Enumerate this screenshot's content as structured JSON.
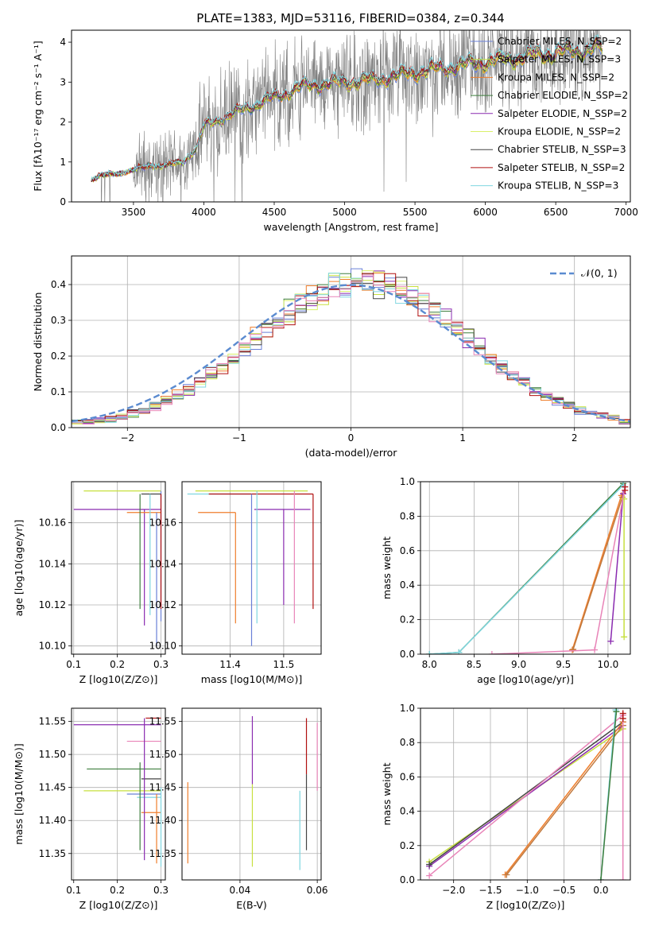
{
  "chart_data": [
    {
      "id": "spectrum",
      "type": "line",
      "title": "PLATE=1383, MJD=53116, FIBERID=0384, z=0.344",
      "xlabel": "wavelength [Angstrom, rest frame]",
      "ylabel": "Flux [fλ10⁻¹⁷ erg cm⁻² s⁻¹ A⁻¹]",
      "xlim": [
        3060,
        7030
      ],
      "ylim": [
        0,
        4.3
      ],
      "xticks": [
        3500,
        4000,
        4500,
        5000,
        5500,
        6000,
        6500,
        7000
      ],
      "yticks": [
        0,
        1,
        2,
        3,
        4
      ],
      "grid": false,
      "legend": "top-right",
      "data_range": [
        3200,
        6830
      ],
      "continuum": {
        "x": [
          3200,
          3250,
          3400,
          3500,
          3550,
          3650,
          3700,
          3850,
          3950,
          4000,
          4300,
          4600,
          4700,
          5000,
          5200,
          5600,
          6000,
          6400,
          6830
        ],
        "y": [
          0.55,
          0.65,
          0.72,
          0.8,
          0.85,
          0.92,
          0.9,
          1.0,
          1.35,
          1.9,
          2.35,
          2.75,
          2.9,
          3.0,
          3.05,
          3.3,
          3.5,
          3.7,
          3.85
        ]
      },
      "series": [
        {
          "name": "Chabrier MILES, N_SSP=2",
          "color": "#6a80d8"
        },
        {
          "name": "Salpeter MILES, N_SSP=3",
          "color": "#c7e03f"
        },
        {
          "name": "Kroupa MILES, N_SSP=2",
          "color": "#ef7e2c"
        },
        {
          "name": "Chabrier ELODIE, N_SSP=2",
          "color": "#3f7f3f"
        },
        {
          "name": "Salpeter ELODIE, N_SSP=2",
          "color": "#8a2bb0"
        },
        {
          "name": "Kroupa ELODIE, N_SSP=2",
          "color": "#d9f06a"
        },
        {
          "name": "Chabrier STELIB, N_SSP=3",
          "color": "#444444"
        },
        {
          "name": "Salpeter STELIB, N_SSP=2",
          "color": "#b01010"
        },
        {
          "name": "Kroupa STELIB, N_SSP=3",
          "color": "#7fd6e0"
        }
      ],
      "data_color": "#808080"
    },
    {
      "id": "residuals",
      "type": "bar",
      "xlabel": "(data-model)/error",
      "ylabel": "Normed distribution",
      "xlim": [
        -2.5,
        2.5
      ],
      "ylim": [
        0,
        0.48
      ],
      "xticks": [
        -2,
        -1,
        0,
        1,
        2
      ],
      "yticks": [
        0.0,
        0.1,
        0.2,
        0.3,
        0.4
      ],
      "grid": true,
      "legend": "top-right",
      "reference": {
        "name": "𝒩(0, 1)",
        "color": "#5b8bd0"
      },
      "bin_width": 0.1,
      "histogram_colors": [
        "#6a80d8",
        "#c7e03f",
        "#ef7e2c",
        "#3f7f3f",
        "#8a2bb0",
        "#d9f06a",
        "#444444",
        "#b01010",
        "#7fd6e0",
        "#e884b8"
      ]
    },
    {
      "id": "age-vs-Z",
      "type": "scatter",
      "xlabel": "Z [log10(Z/Z⊙)]",
      "ylabel": "age  [log10(age/yr)]",
      "xlim": [
        0.095,
        0.31
      ],
      "ylim": [
        10.096,
        10.18
      ],
      "xticks": [
        0.1,
        0.2,
        0.3
      ],
      "yticks": [
        10.1,
        10.12,
        10.14,
        10.16
      ],
      "grid": true,
      "points": [
        {
          "x": 0.123,
          "x2": 0.3,
          "y": 10.1755,
          "y2": 10.1755,
          "color": "#c7e03f"
        },
        {
          "x": 0.3,
          "x2": 0.3,
          "y": 10.1755,
          "y2": 10.112,
          "color": "#6a80d8"
        },
        {
          "x": 0.1,
          "x2": 0.3,
          "y": 10.1665,
          "y2": 10.1665,
          "color": "#8a2bb0"
        },
        {
          "x": 0.262,
          "x2": 0.262,
          "y": 10.1665,
          "y2": 10.11,
          "color": "#8a2bb0"
        },
        {
          "x": 0.222,
          "x2": 0.3,
          "y": 10.165,
          "y2": 10.165,
          "color": "#ef7e2c"
        },
        {
          "x": 0.29,
          "x2": 0.29,
          "y": 10.165,
          "y2": 10.1,
          "color": "#6a80d8"
        },
        {
          "x": 0.255,
          "x2": 0.3,
          "y": 10.174,
          "y2": 10.174,
          "color": "#444444"
        },
        {
          "x": 0.252,
          "x2": 0.252,
          "y": 10.174,
          "y2": 10.118,
          "color": "#3f7f3f"
        },
        {
          "x": 0.275,
          "x2": 0.275,
          "y": 10.174,
          "y2": 10.115,
          "color": "#7fd6e0"
        },
        {
          "x": 0.3,
          "x2": 0.3,
          "y": 10.174,
          "y2": 10.118,
          "color": "#b01010"
        }
      ]
    },
    {
      "id": "age-vs-mass",
      "type": "scatter",
      "xlabel": "mass [log10(M/M⊙)]",
      "ylabel": "",
      "xlim": [
        11.31,
        11.57
      ],
      "ylim": [
        10.096,
        10.18
      ],
      "xticks": [
        11.4,
        11.5
      ],
      "yticks": [
        10.1,
        10.12,
        10.14,
        10.16
      ],
      "grid": true,
      "points": [
        {
          "x": 11.335,
          "x2": 11.545,
          "y": 10.1755,
          "y2": 10.1755,
          "color": "#c7e03f"
        },
        {
          "x": 11.32,
          "x2": 11.44,
          "y": 10.174,
          "y2": 10.174,
          "color": "#7fd6e0"
        },
        {
          "x": 11.36,
          "x2": 11.555,
          "y": 10.174,
          "y2": 10.174,
          "color": "#b01010"
        },
        {
          "x": 11.445,
          "x2": 11.55,
          "y": 10.1665,
          "y2": 10.1665,
          "color": "#8a2bb0"
        },
        {
          "x": 11.34,
          "x2": 11.41,
          "y": 10.165,
          "y2": 10.165,
          "color": "#ef7e2c"
        },
        {
          "x": 11.41,
          "x2": 11.41,
          "y": 10.165,
          "y2": 10.111,
          "color": "#ef7e2c"
        },
        {
          "x": 11.44,
          "x2": 11.44,
          "y": 10.174,
          "y2": 10.1,
          "color": "#6a80d8"
        },
        {
          "x": 11.45,
          "x2": 11.45,
          "y": 10.1755,
          "y2": 10.111,
          "color": "#7fd6e0"
        },
        {
          "x": 11.5,
          "x2": 11.5,
          "y": 10.1665,
          "y2": 10.12,
          "color": "#8a2bb0"
        },
        {
          "x": 11.52,
          "x2": 11.52,
          "y": 10.1755,
          "y2": 10.111,
          "color": "#e884b8"
        },
        {
          "x": 11.555,
          "x2": 11.555,
          "y": 10.174,
          "y2": 10.118,
          "color": "#b01010"
        }
      ]
    },
    {
      "id": "weight-vs-age",
      "type": "line",
      "xlabel": "age  [log10(age/yr)]",
      "ylabel": "mass weight",
      "xlim": [
        7.9,
        10.25
      ],
      "ylim": [
        0,
        1.0
      ],
      "xticks": [
        8.0,
        8.5,
        9.0,
        9.5,
        10.0
      ],
      "yticks": [
        0.0,
        0.2,
        0.4,
        0.6,
        0.8,
        1.0
      ],
      "grid": true,
      "series": [
        {
          "color": "#3f7f3f",
          "x": [
            8.0,
            8.33,
            10.17
          ],
          "y": [
            0.0,
            0.01,
            0.99
          ]
        },
        {
          "color": "#7fd6e0",
          "x": [
            8.0,
            8.33,
            10.17
          ],
          "y": [
            0.0,
            0.01,
            0.98
          ]
        },
        {
          "color": "#ef7e2c",
          "x": [
            9.6,
            10.15
          ],
          "y": [
            0.025,
            0.92
          ]
        },
        {
          "color": "#c07a40",
          "x": [
            9.61,
            10.16
          ],
          "y": [
            0.028,
            0.91
          ]
        },
        {
          "color": "#8a2bb0",
          "x": [
            10.03,
            10.17
          ],
          "y": [
            0.075,
            0.93
          ]
        },
        {
          "color": "#c7e03f",
          "x": [
            10.18,
            10.18
          ],
          "y": [
            0.1,
            0.9
          ]
        },
        {
          "color": "#e884b8",
          "x": [
            8.7,
            9.85,
            10.19
          ],
          "y": [
            0.0,
            0.025,
            0.97
          ]
        },
        {
          "color": "#b01010",
          "x": [
            10.19,
            10.19
          ],
          "y": [
            0.95,
            0.97
          ]
        }
      ]
    },
    {
      "id": "mass-vs-Z",
      "type": "scatter",
      "xlabel": "Z [log10(Z/Z⊙)]",
      "ylabel": "mass [log10(M/M⊙)]",
      "xlim": [
        0.095,
        0.31
      ],
      "ylim": [
        11.31,
        11.57
      ],
      "xticks": [
        0.1,
        0.2,
        0.3
      ],
      "yticks": [
        11.35,
        11.4,
        11.45,
        11.5,
        11.55
      ],
      "grid": true,
      "points": [
        {
          "x": 0.1,
          "x2": 0.3,
          "y": 11.545,
          "y2": 11.545,
          "color": "#8a2bb0"
        },
        {
          "x": 0.222,
          "x2": 0.3,
          "y": 11.52,
          "y2": 11.52,
          "color": "#e884b8"
        },
        {
          "x": 0.13,
          "x2": 0.3,
          "y": 11.478,
          "y2": 11.478,
          "color": "#3f7f3f"
        },
        {
          "x": 0.123,
          "x2": 0.3,
          "y": 11.445,
          "y2": 11.445,
          "color": "#c7e03f"
        },
        {
          "x": 0.222,
          "x2": 0.3,
          "y": 11.44,
          "y2": 11.44,
          "color": "#6a80d8"
        },
        {
          "x": 0.255,
          "x2": 0.3,
          "y": 11.463,
          "y2": 11.463,
          "color": "#444444"
        },
        {
          "x": 0.245,
          "x2": 0.3,
          "y": 11.435,
          "y2": 11.435,
          "color": "#7fd6e0"
        },
        {
          "x": 0.255,
          "x2": 0.3,
          "y": 11.412,
          "y2": 11.412,
          "color": "#ef7e2c"
        },
        {
          "x": 0.265,
          "x2": 0.3,
          "y": 11.555,
          "y2": 11.555,
          "color": "#b01010"
        },
        {
          "x": 0.252,
          "x2": 0.252,
          "y": 11.488,
          "y2": 11.355,
          "color": "#3f7f3f"
        },
        {
          "x": 0.262,
          "x2": 0.262,
          "y": 11.555,
          "y2": 11.34,
          "color": "#8a2bb0"
        },
        {
          "x": 0.29,
          "x2": 0.29,
          "y": 11.44,
          "y2": 11.335,
          "color": "#ef7e2c"
        },
        {
          "x": 0.3,
          "x2": 0.3,
          "y": 11.45,
          "y2": 11.33,
          "color": "#7fd6e0"
        }
      ]
    },
    {
      "id": "mass-vs-ebv",
      "type": "scatter",
      "xlabel": "E(B-V)",
      "ylabel": "",
      "xlim": [
        0.025,
        0.061
      ],
      "ylim": [
        11.31,
        11.57
      ],
      "xticks": [
        0.04,
        0.06
      ],
      "yticks": [
        11.35,
        11.4,
        11.45,
        11.5,
        11.55
      ],
      "grid": true,
      "points": [
        {
          "x": 0.0265,
          "x2": 0.0265,
          "y": 11.458,
          "y2": 11.335,
          "color": "#ef7e2c"
        },
        {
          "x": 0.0432,
          "x2": 0.0432,
          "y": 11.558,
          "y2": 11.455,
          "color": "#8a2bb0"
        },
        {
          "x": 0.0432,
          "x2": 0.0432,
          "y": 11.455,
          "y2": 11.33,
          "color": "#c7e03f"
        },
        {
          "x": 0.0555,
          "x2": 0.0555,
          "y": 11.445,
          "y2": 11.325,
          "color": "#7fd6e0"
        },
        {
          "x": 0.0572,
          "x2": 0.0572,
          "y": 11.555,
          "y2": 11.47,
          "color": "#b01010"
        },
        {
          "x": 0.0572,
          "x2": 0.0572,
          "y": 11.47,
          "y2": 11.355,
          "color": "#444444"
        },
        {
          "x": 0.06,
          "x2": 0.06,
          "y": 11.548,
          "y2": 11.445,
          "color": "#e884b8"
        }
      ]
    },
    {
      "id": "weight-vs-Z",
      "type": "line",
      "xlabel": "Z [log10(Z/Z⊙)]",
      "ylabel": "mass weight",
      "xlim": [
        -2.45,
        0.4
      ],
      "ylim": [
        0,
        1.0
      ],
      "xticks": [
        -2.0,
        -1.5,
        -1.0,
        -0.5,
        0.0
      ],
      "yticks": [
        0.0,
        0.2,
        0.4,
        0.6,
        0.8,
        1.0
      ],
      "grid": true,
      "series": [
        {
          "color": "#c7e03f",
          "x": [
            -2.33,
            0.3
          ],
          "y": [
            0.105,
            0.88
          ]
        },
        {
          "color": "#8a2bb0",
          "x": [
            -2.33,
            0.3
          ],
          "y": [
            0.08,
            0.9
          ]
        },
        {
          "color": "#444444",
          "x": [
            -2.33,
            0.3
          ],
          "y": [
            0.09,
            0.92
          ]
        },
        {
          "color": "#e884b8",
          "x": [
            -2.33,
            0.3
          ],
          "y": [
            0.025,
            0.96
          ]
        },
        {
          "color": "#ef7e2c",
          "x": [
            -1.3,
            0.3
          ],
          "y": [
            0.03,
            0.92
          ]
        },
        {
          "color": "#c07a40",
          "x": [
            -1.28,
            0.3
          ],
          "y": [
            0.03,
            0.9
          ]
        },
        {
          "color": "#7fd6e0",
          "x": [
            0.0,
            0.2
          ],
          "y": [
            0.0,
            0.99
          ]
        },
        {
          "color": "#3f7f3f",
          "x": [
            0.0,
            0.21
          ],
          "y": [
            0.0,
            0.98
          ]
        },
        {
          "color": "#e884b8",
          "x": [
            0.3,
            0.3
          ],
          "y": [
            0.0,
            0.96
          ]
        },
        {
          "color": "#b01010",
          "x": [
            0.3,
            0.3
          ],
          "y": [
            0.94,
            0.97
          ]
        }
      ]
    }
  ]
}
